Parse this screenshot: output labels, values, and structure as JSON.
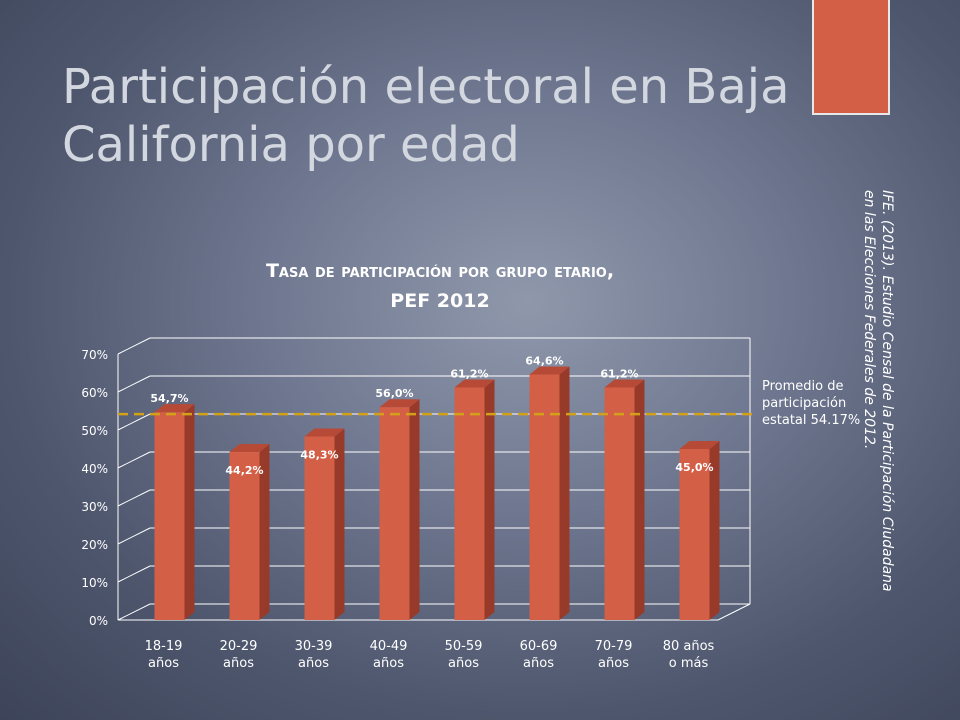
{
  "slide": {
    "title": "Participación electoral en Baja California por edad",
    "citation_line1": "IFE. (2013). Estudio Censal de la Participación Ciudadana",
    "citation_line2": "en las Elecciones Federales de 2012."
  },
  "colors": {
    "bar_front": "#d25f46",
    "bar_side": "#983a2a",
    "bar_top": "#b64a36",
    "avg_line": "#d4a017",
    "accent": "#d25f46"
  },
  "chart_data": {
    "type": "bar",
    "title_line1": "Tasa de participación por grupo etario,",
    "title_line2": "PEF 2012",
    "categories": [
      "18-19 años",
      "20-29 años",
      "30-39 años",
      "40-49 años",
      "50-59 años",
      "60-69 años",
      "70-79 años",
      "80 años o más"
    ],
    "values": [
      54.7,
      44.2,
      48.3,
      56.0,
      61.2,
      64.6,
      61.2,
      45.0
    ],
    "data_labels": [
      "54,7%",
      "44,2%",
      "48,3%",
      "56,0%",
      "61,2%",
      "64,6%",
      "61,2%",
      "45,0%"
    ],
    "ylim": [
      0,
      70
    ],
    "yticks": [
      "0%",
      "10%",
      "20%",
      "30%",
      "40%",
      "50%",
      "60%",
      "70%"
    ],
    "grid": true,
    "reference_line": {
      "value": 54.17,
      "label": "Promedio de participación estatal 54.17%"
    }
  }
}
